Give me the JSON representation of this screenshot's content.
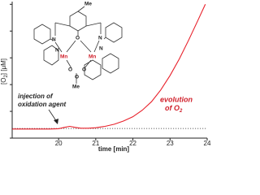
{
  "chart_data": {
    "type": "line",
    "x": [
      18.75,
      19.0,
      19.25,
      19.5,
      19.75,
      20.0,
      20.15,
      20.3,
      20.45,
      20.6,
      20.8,
      21.0,
      21.25,
      21.5,
      21.75,
      22.0,
      22.25,
      22.5,
      22.75,
      23.0,
      23.25,
      23.5,
      23.75,
      23.95
    ],
    "series": [
      {
        "name": "O2",
        "color": "#e8202a",
        "values": [
          17,
          17,
          17,
          17,
          17,
          17.5,
          20,
          22,
          20,
          18.5,
          18.5,
          19.5,
          22,
          26,
          32,
          40,
          52,
          68,
          90,
          117,
          148,
          183,
          220,
          250
        ]
      }
    ],
    "xlim": [
      18.75,
      24
    ],
    "xticks": [
      20,
      21,
      22,
      23,
      24
    ],
    "ylim": [
      0,
      255
    ],
    "yticks": [
      0,
      50,
      100,
      150,
      200,
      250
    ],
    "x_label": "time [min]",
    "y_label": [
      "[O",
      "2",
      "] [μM]"
    ],
    "reference_line": 18,
    "annotations": {
      "injection": [
        "injection of",
        "oxidation agent"
      ],
      "evolution": [
        "evolution",
        "of O",
        "2"
      ]
    }
  },
  "inset": {
    "labels": [
      "Me",
      "N",
      "N",
      "O",
      "N",
      "N",
      "Mn",
      "Mn",
      "O",
      "O",
      "O",
      "Me"
    ]
  }
}
